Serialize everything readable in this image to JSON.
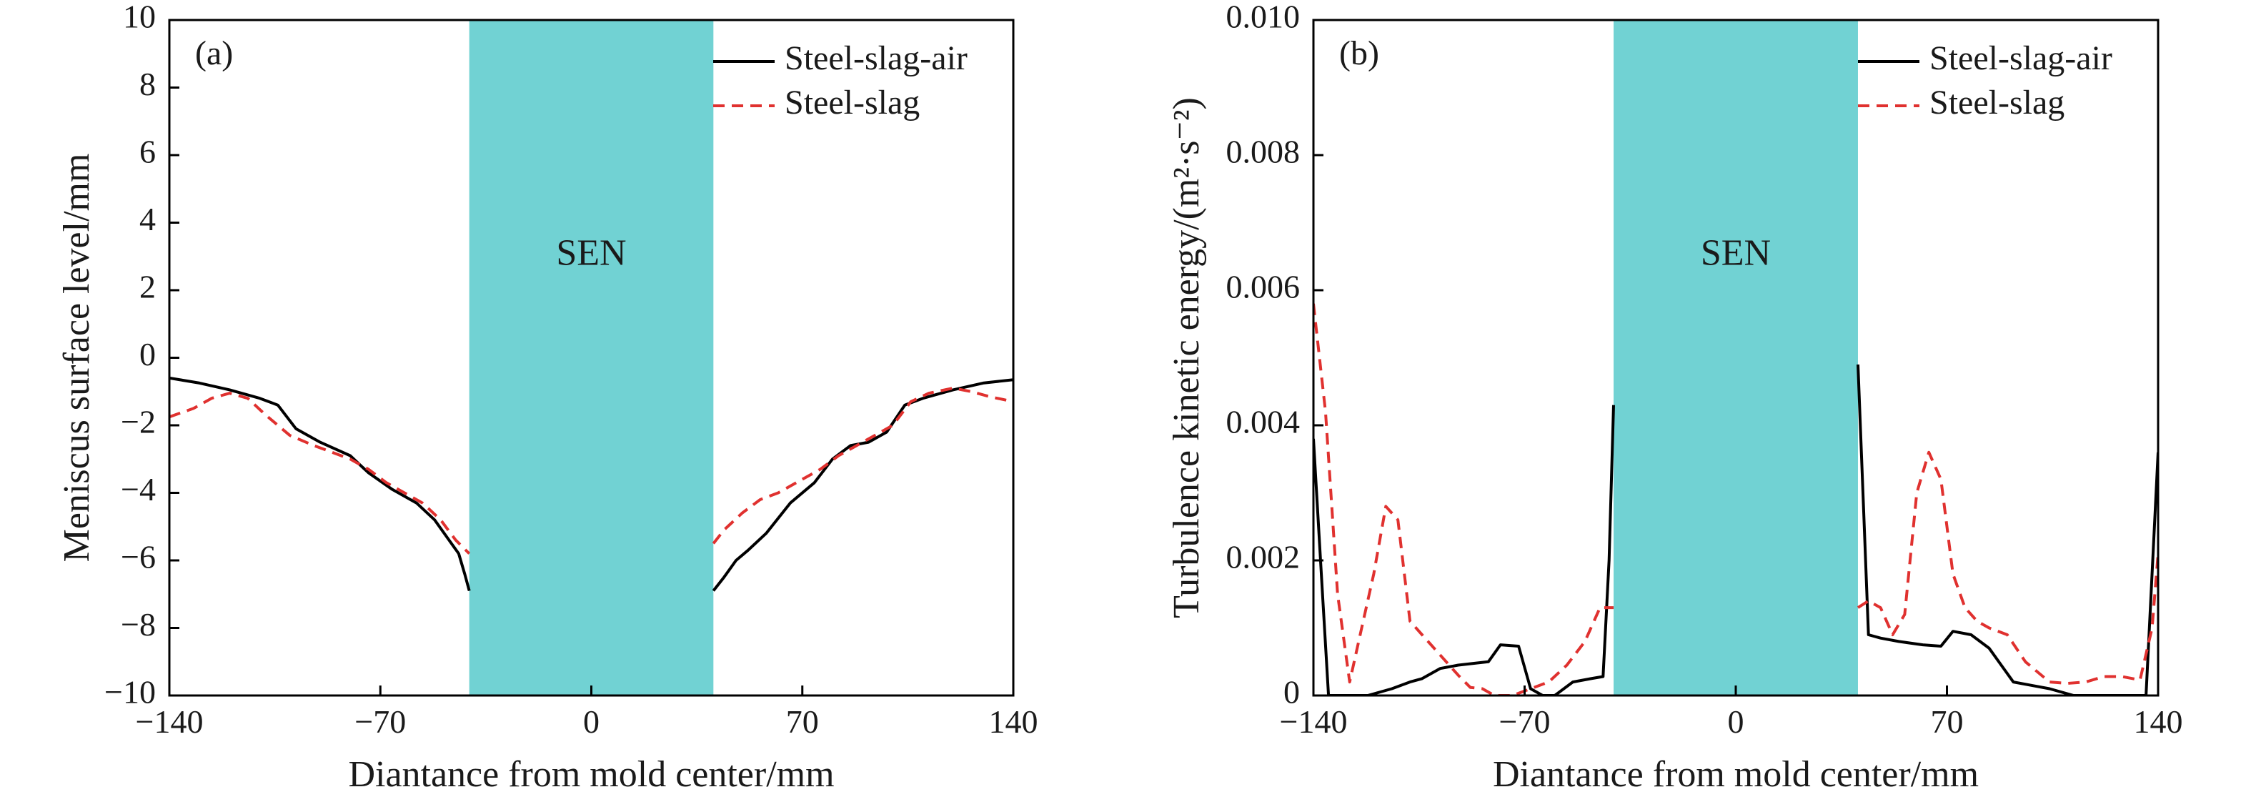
{
  "chart_data": [
    {
      "panel_label": "(a)",
      "type": "line",
      "xlabel": "Diantance from mold center/mm",
      "ylabel": "Meniscus surface level/mm",
      "xlim": [
        -140,
        140
      ],
      "ylim": [
        -10,
        10
      ],
      "xticks": [
        "−140",
        "−70",
        "0",
        "70",
        "140"
      ],
      "xtick_values": [
        -140,
        -70,
        0,
        70,
        140
      ],
      "yticks": [
        "10",
        "8",
        "6",
        "4",
        "2",
        "0",
        "−2",
        "−4",
        "−6",
        "−8",
        "−10"
      ],
      "ytick_values": [
        10,
        8,
        6,
        4,
        2,
        0,
        -2,
        -4,
        -6,
        -8,
        -10
      ],
      "sen": {
        "label": "SEN",
        "x_range": [
          -40.5,
          40.5
        ],
        "color": "#71d2d3"
      },
      "legend": {
        "placement": "top-right"
      },
      "series": [
        {
          "name": "Steel-slag-air",
          "color": "#000000",
          "dash": "solid",
          "segments": [
            [
              [
                -140,
                -0.6
              ],
              [
                -130,
                -0.75
              ],
              [
                -120,
                -0.95
              ],
              [
                -110,
                -1.2
              ],
              [
                -104,
                -1.4
              ],
              [
                -98,
                -2.1
              ],
              [
                -90,
                -2.5
              ],
              [
                -80,
                -2.9
              ],
              [
                -74,
                -3.4
              ],
              [
                -66,
                -3.9
              ],
              [
                -58,
                -4.3
              ],
              [
                -52,
                -4.8
              ],
              [
                -48,
                -5.3
              ],
              [
                -44,
                -5.8
              ],
              [
                -42,
                -6.4
              ],
              [
                -40.5,
                -6.9
              ]
            ],
            [
              [
                40.5,
                -6.9
              ],
              [
                44,
                -6.5
              ],
              [
                48,
                -6.0
              ],
              [
                52,
                -5.7
              ],
              [
                58,
                -5.2
              ],
              [
                66,
                -4.3
              ],
              [
                74,
                -3.7
              ],
              [
                80,
                -3.0
              ],
              [
                86,
                -2.6
              ],
              [
                92,
                -2.5
              ],
              [
                98,
                -2.2
              ],
              [
                104,
                -1.4
              ],
              [
                110,
                -1.2
              ],
              [
                120,
                -0.95
              ],
              [
                130,
                -0.75
              ],
              [
                140,
                -0.65
              ]
            ]
          ]
        },
        {
          "name": "Steel-slag",
          "color": "#e0312f",
          "dash": "dashed",
          "segments": [
            [
              [
                -140,
                -1.75
              ],
              [
                -132,
                -1.5
              ],
              [
                -126,
                -1.2
              ],
              [
                -120,
                -1.05
              ],
              [
                -114,
                -1.2
              ],
              [
                -108,
                -1.7
              ],
              [
                -100,
                -2.3
              ],
              [
                -92,
                -2.6
              ],
              [
                -86,
                -2.8
              ],
              [
                -80,
                -3.0
              ],
              [
                -74,
                -3.3
              ],
              [
                -68,
                -3.7
              ],
              [
                -62,
                -4.0
              ],
              [
                -56,
                -4.3
              ],
              [
                -50,
                -4.8
              ],
              [
                -45,
                -5.4
              ],
              [
                -40.5,
                -5.8
              ]
            ],
            [
              [
                40.5,
                -5.5
              ],
              [
                44,
                -5.1
              ],
              [
                50,
                -4.6
              ],
              [
                56,
                -4.2
              ],
              [
                62,
                -4.0
              ],
              [
                68,
                -3.7
              ],
              [
                76,
                -3.3
              ],
              [
                82,
                -2.9
              ],
              [
                88,
                -2.6
              ],
              [
                94,
                -2.3
              ],
              [
                100,
                -2.0
              ],
              [
                106,
                -1.3
              ],
              [
                112,
                -1.05
              ],
              [
                120,
                -0.9
              ],
              [
                126,
                -1.0
              ],
              [
                132,
                -1.15
              ],
              [
                140,
                -1.3
              ]
            ]
          ]
        }
      ]
    },
    {
      "panel_label": "(b)",
      "type": "line",
      "xlabel": "Diantance from mold center/mm",
      "ylabel": "Turbulence kinetic energy/(m²·s⁻²)",
      "xlim": [
        -140,
        140
      ],
      "ylim": [
        0,
        0.01
      ],
      "xticks": [
        "−140",
        "−70",
        "0",
        "70",
        "140"
      ],
      "xtick_values": [
        -140,
        -70,
        0,
        70,
        140
      ],
      "yticks": [
        "0.010",
        "0.008",
        "0.006",
        "0.004",
        "0.002",
        "0"
      ],
      "ytick_values": [
        0.01,
        0.008,
        0.006,
        0.004,
        0.002,
        0
      ],
      "sen": {
        "label": "SEN",
        "x_range": [
          -40.5,
          40.5
        ],
        "color": "#71d2d3"
      },
      "legend": {
        "placement": "top-right"
      },
      "series": [
        {
          "name": "Steel-slag-air",
          "color": "#000000",
          "dash": "solid",
          "segments": [
            [
              [
                -140,
                0.0038
              ],
              [
                -137,
                0.0015
              ],
              [
                -135,
                0.0
              ],
              [
                -130,
                0.0
              ],
              [
                -122,
                0.0
              ],
              [
                -114,
                0.0001
              ],
              [
                -108,
                0.0002
              ],
              [
                -104,
                0.00025
              ],
              [
                -98,
                0.0004
              ],
              [
                -92,
                0.00045
              ],
              [
                -86,
                0.00048
              ],
              [
                -82,
                0.0005
              ],
              [
                -78,
                0.00075
              ],
              [
                -72,
                0.00073
              ],
              [
                -68,
                0.0001
              ],
              [
                -64,
                0.0
              ],
              [
                -60,
                0.0
              ],
              [
                -54,
                0.0002
              ],
              [
                -48,
                0.00025
              ],
              [
                -44,
                0.00028
              ],
              [
                -42,
                0.002
              ],
              [
                -40.5,
                0.0043
              ]
            ],
            [
              [
                40.5,
                0.0049
              ],
              [
                44,
                0.0009
              ],
              [
                48,
                0.00085
              ],
              [
                54,
                0.0008
              ],
              [
                62,
                0.00075
              ],
              [
                68,
                0.00073
              ],
              [
                72,
                0.00095
              ],
              [
                78,
                0.0009
              ],
              [
                84,
                0.0007
              ],
              [
                88,
                0.00045
              ],
              [
                92,
                0.0002
              ],
              [
                98,
                0.00015
              ],
              [
                104,
                0.0001
              ],
              [
                112,
                0.0
              ],
              [
                120,
                0.0
              ],
              [
                130,
                0.0
              ],
              [
                136,
                0.0
              ],
              [
                140,
                0.0036
              ]
            ]
          ]
        },
        {
          "name": "Steel-slag",
          "color": "#e0312f",
          "dash": "dashed",
          "segments": [
            [
              [
                -140,
                0.0058
              ],
              [
                -136,
                0.0042
              ],
              [
                -132,
                0.0015
              ],
              [
                -128,
                0.0002
              ],
              [
                -124,
                0.001
              ],
              [
                -120,
                0.0018
              ],
              [
                -116,
                0.0028
              ],
              [
                -112,
                0.0026
              ],
              [
                -108,
                0.0011
              ],
              [
                -104,
                0.0009
              ],
              [
                -98,
                0.0006
              ],
              [
                -92,
                0.0003
              ],
              [
                -88,
                0.00012
              ],
              [
                -84,
                0.0001
              ],
              [
                -80,
                0.0
              ],
              [
                -74,
                0.0
              ],
              [
                -68,
                0.0001
              ],
              [
                -62,
                0.0002
              ],
              [
                -56,
                0.00045
              ],
              [
                -50,
                0.0008
              ],
              [
                -45,
                0.0013
              ],
              [
                -40.5,
                0.0013
              ]
            ],
            [
              [
                40.5,
                0.0013
              ],
              [
                44,
                0.0014
              ],
              [
                48,
                0.0013
              ],
              [
                52,
                0.0009
              ],
              [
                56,
                0.0012
              ],
              [
                60,
                0.003
              ],
              [
                64,
                0.0036
              ],
              [
                68,
                0.0032
              ],
              [
                72,
                0.0018
              ],
              [
                76,
                0.0013
              ],
              [
                80,
                0.0011
              ],
              [
                84,
                0.001
              ],
              [
                90,
                0.0009
              ],
              [
                96,
                0.0005
              ],
              [
                104,
                0.0002
              ],
              [
                110,
                0.00018
              ],
              [
                116,
                0.0002
              ],
              [
                122,
                0.00028
              ],
              [
                128,
                0.00028
              ],
              [
                134,
                0.00023
              ],
              [
                138,
                0.001
              ],
              [
                140,
                0.0021
              ]
            ]
          ]
        }
      ]
    }
  ]
}
